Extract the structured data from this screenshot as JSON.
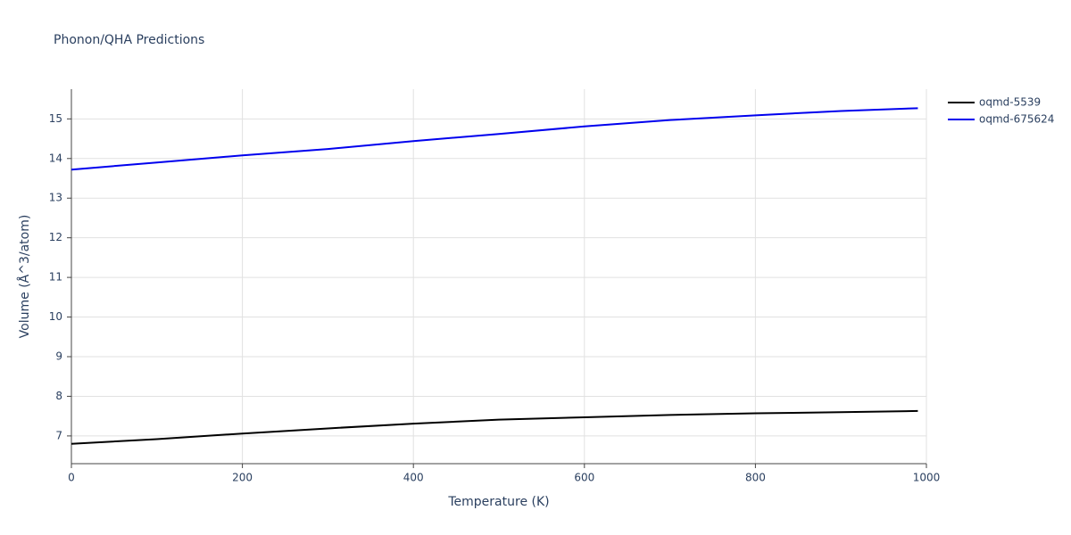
{
  "chart_data": {
    "type": "line",
    "title": "Phonon/QHA Predictions",
    "x_label": "Temperature (K)",
    "y_label": "Volume (Å^3/atom)",
    "x": [
      0,
      100,
      200,
      300,
      400,
      500,
      600,
      700,
      800,
      900,
      990
    ],
    "series": [
      {
        "name": "oqmd-5539",
        "color": "#000000",
        "values": [
          6.8,
          6.92,
          7.06,
          7.19,
          7.31,
          7.41,
          7.47,
          7.53,
          7.57,
          7.6,
          7.63
        ]
      },
      {
        "name": "oqmd-675624",
        "color": "#0000ee",
        "values": [
          13.72,
          13.9,
          14.08,
          14.24,
          14.44,
          14.62,
          14.81,
          14.97,
          15.09,
          15.2,
          15.27
        ]
      }
    ],
    "xlim": [
      0,
      1000
    ],
    "xticks": [
      0,
      200,
      400,
      600,
      800,
      1000
    ],
    "ylim": [
      6.3,
      15.75
    ],
    "yticks": [
      7,
      8,
      9,
      10,
      11,
      12,
      13,
      14,
      15
    ],
    "grid": true,
    "legend": "top-right"
  }
}
